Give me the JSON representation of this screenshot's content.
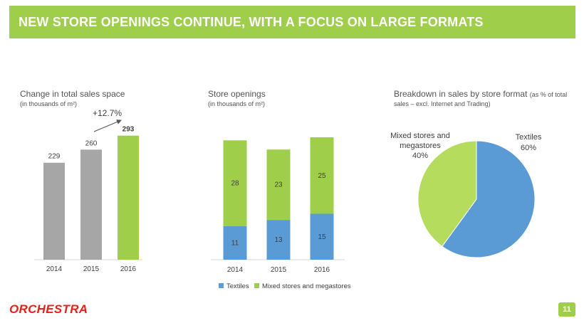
{
  "header": {
    "title": "NEW STORE OPENINGS CONTINUE, WITH A FOCUS ON LARGE FORMATS"
  },
  "colors": {
    "green": "#9fce4a",
    "light_green": "#b6dc5e",
    "gray": "#a6a6a6",
    "blue": "#5b9bd5",
    "dark_text": "#404040",
    "brand_red": "#e2231a"
  },
  "footer": {
    "logo_text": "ORCHESTRA",
    "page_number": "11"
  },
  "chart_data": [
    {
      "type": "bar",
      "title": "Change in total sales space",
      "subtitle": "(in thousands of m²)",
      "categories": [
        "2014",
        "2015",
        "2016"
      ],
      "values": [
        229,
        260,
        293
      ],
      "value_labels": [
        "229",
        "260",
        "293"
      ],
      "bar_colors": [
        "#a6a6a6",
        "#a6a6a6",
        "#9fce4a"
      ],
      "annotation": "+12.7%",
      "ylim": [
        0,
        300
      ]
    },
    {
      "type": "bar",
      "stacked": true,
      "title": "Store openings",
      "subtitle": "(in thousands of m²)",
      "categories": [
        "2014",
        "2015",
        "2016"
      ],
      "series": [
        {
          "name": "Textiles",
          "values": [
            11,
            13,
            15
          ],
          "labels": [
            "11",
            "13",
            "15"
          ],
          "color": "#5b9bd5"
        },
        {
          "name": "Mixed stores and megastores",
          "values": [
            28,
            23,
            25
          ],
          "labels": [
            "28",
            "23",
            "25"
          ],
          "color": "#9fce4a"
        }
      ],
      "ylim": [
        0,
        45
      ]
    },
    {
      "type": "pie",
      "title": "Breakdown in sales by store format",
      "title_note": "(as % of total",
      "subtitle": "sales – excl. Internet and Trading)",
      "slices": [
        {
          "name": "Textiles",
          "value": 60,
          "label": "Textiles",
          "pct": "60%",
          "color": "#5b9bd5"
        },
        {
          "name": "Mixed stores and megastores",
          "value": 40,
          "label_line1": "Mixed stores and",
          "label_line2": "megastores",
          "pct": "40%",
          "color": "#b6dc5e"
        }
      ]
    }
  ]
}
